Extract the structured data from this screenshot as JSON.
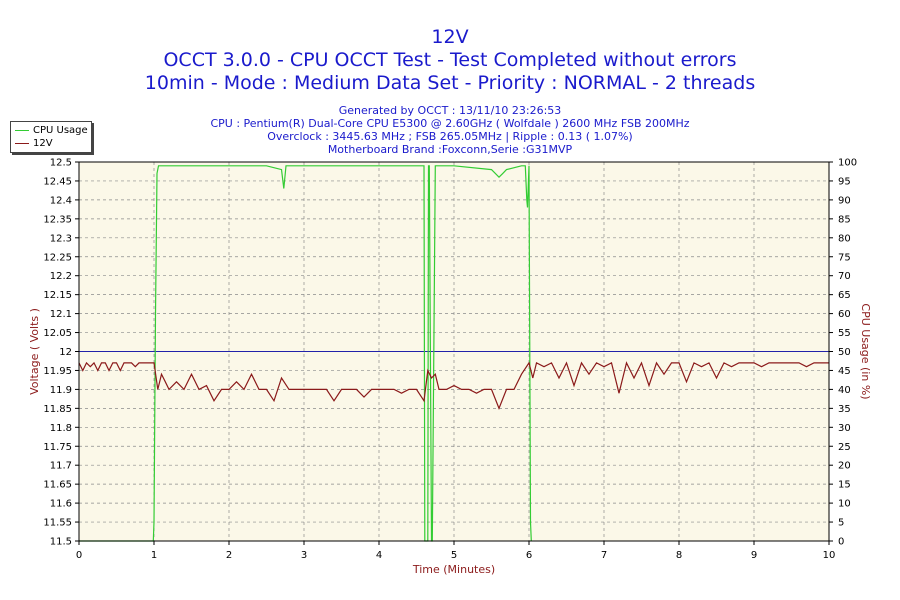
{
  "header": {
    "title": "12V",
    "subtitle": "OCCT 3.0.0 - CPU OCCT Test - Test Completed without errors",
    "subtitle2": "10min - Mode : Medium Data Set - Priority : NORMAL - 2 threads",
    "info": [
      "Generated by OCCT : 13/11/10 23:26:53",
      "CPU : Pentium(R) Dual-Core CPU E5300 @ 2.60GHz ( Wolfdale ) 2600 MHz FSB 200MHz",
      "Overclock : 3445.63 MHz ; FSB 265.05MHz | Ripple : 0.13 ( 1.07%)",
      "Motherboard Brand :Foxconn,Serie :G31MVP"
    ]
  },
  "legend": {
    "items": [
      {
        "label": "CPU Usage",
        "color": "#33cc33"
      },
      {
        "label": "12V",
        "color": "#8b1a1a"
      }
    ]
  },
  "colors": {
    "plot_bg": "#fbf8e8",
    "grid": "#8a8a8a",
    "axis_text": "#000000",
    "axis_label": "#8b1a1a",
    "cpu_line": "#33cc33",
    "voltage_line": "#8b1a1a",
    "reference_line": "#2222aa"
  },
  "chart_data": {
    "type": "line",
    "xlabel": "Time (Minutes)",
    "ylabel": "Voltage ( Volts )",
    "y2label": "CPU Usage (in %)",
    "xlim": [
      0,
      10
    ],
    "ylim": [
      11.5,
      12.5
    ],
    "y2lim": [
      0,
      100
    ],
    "xticks": [
      0,
      1,
      2,
      3,
      4,
      5,
      6,
      7,
      8,
      9,
      10
    ],
    "yticks": [
      11.5,
      11.55,
      11.6,
      11.65,
      11.7,
      11.75,
      11.8,
      11.85,
      11.9,
      11.95,
      12,
      12.05,
      12.1,
      12.15,
      12.2,
      12.25,
      12.3,
      12.35,
      12.4,
      12.45,
      12.5
    ],
    "ytick_labels": [
      "11.5",
      "11.55",
      "11.6",
      "11.65",
      "11.7",
      "11.75",
      "11.8",
      "11.85",
      "11.9",
      "11.95",
      "12",
      "12.05",
      "12.1",
      "12.15",
      "12.2",
      "12.25",
      "12.3",
      "12.35",
      "12.4",
      "12.45",
      "12.5"
    ],
    "y2ticks": [
      0,
      5,
      10,
      15,
      20,
      25,
      30,
      35,
      40,
      45,
      50,
      55,
      60,
      65,
      70,
      75,
      80,
      85,
      90,
      95,
      100
    ],
    "grid": true,
    "legend_position": "top-left",
    "reference_line": {
      "y": 12.0
    },
    "series": [
      {
        "name": "CPU Usage",
        "axis": "right",
        "x": [
          0,
          0.99,
          1.0,
          1.02,
          1.04,
          1.06,
          1.1,
          1.5,
          2.0,
          2.5,
          2.7,
          2.73,
          2.76,
          2.8,
          3.5,
          4.0,
          4.6,
          4.61,
          4.65,
          4.66,
          4.67,
          4.7,
          4.71,
          4.75,
          5.0,
          5.5,
          5.6,
          5.65,
          5.7,
          5.9,
          5.95,
          5.97,
          5.98,
          6.0,
          6.02,
          6.03
        ],
        "values": [
          0,
          0,
          5,
          60,
          97,
          99,
          99,
          99,
          99,
          99,
          98,
          93,
          99,
          99,
          99,
          99,
          99,
          0,
          0,
          99,
          99,
          0,
          0,
          99,
          99,
          98,
          96,
          97,
          98,
          99,
          99,
          90,
          88,
          99,
          5,
          0
        ]
      },
      {
        "name": "12V",
        "axis": "left",
        "x": [
          0,
          0.05,
          0.1,
          0.15,
          0.2,
          0.25,
          0.3,
          0.35,
          0.4,
          0.45,
          0.5,
          0.55,
          0.6,
          0.65,
          0.7,
          0.75,
          0.8,
          0.85,
          0.9,
          0.95,
          1.0,
          1.05,
          1.1,
          1.15,
          1.2,
          1.3,
          1.4,
          1.5,
          1.6,
          1.7,
          1.8,
          1.9,
          2.0,
          2.1,
          2.2,
          2.3,
          2.4,
          2.5,
          2.6,
          2.7,
          2.8,
          2.9,
          3.0,
          3.1,
          3.2,
          3.3,
          3.4,
          3.5,
          3.6,
          3.7,
          3.8,
          3.9,
          4.0,
          4.1,
          4.2,
          4.3,
          4.4,
          4.5,
          4.6,
          4.65,
          4.7,
          4.75,
          4.8,
          4.9,
          5.0,
          5.1,
          5.2,
          5.3,
          5.4,
          5.5,
          5.6,
          5.7,
          5.8,
          5.9,
          6.0,
          6.05,
          6.1,
          6.2,
          6.3,
          6.4,
          6.5,
          6.6,
          6.7,
          6.8,
          6.9,
          7.0,
          7.1,
          7.2,
          7.3,
          7.4,
          7.5,
          7.6,
          7.7,
          7.8,
          7.9,
          8.0,
          8.1,
          8.2,
          8.3,
          8.4,
          8.5,
          8.6,
          8.7,
          8.8,
          8.9,
          9.0,
          9.1,
          9.2,
          9.3,
          9.4,
          9.5,
          9.6,
          9.7,
          9.8,
          9.9,
          10.0
        ],
        "values": [
          11.97,
          11.95,
          11.97,
          11.96,
          11.97,
          11.95,
          11.97,
          11.97,
          11.95,
          11.97,
          11.97,
          11.95,
          11.97,
          11.97,
          11.97,
          11.96,
          11.97,
          11.97,
          11.97,
          11.97,
          11.97,
          11.9,
          11.94,
          11.92,
          11.9,
          11.92,
          11.9,
          11.94,
          11.9,
          11.91,
          11.87,
          11.9,
          11.9,
          11.92,
          11.9,
          11.94,
          11.9,
          11.9,
          11.87,
          11.93,
          11.9,
          11.9,
          11.9,
          11.9,
          11.9,
          11.9,
          11.87,
          11.9,
          11.9,
          11.9,
          11.88,
          11.9,
          11.9,
          11.9,
          11.9,
          11.89,
          11.9,
          11.9,
          11.87,
          11.95,
          11.93,
          11.94,
          11.9,
          11.9,
          11.91,
          11.9,
          11.9,
          11.89,
          11.9,
          11.9,
          11.85,
          11.9,
          11.9,
          11.94,
          11.97,
          11.93,
          11.97,
          11.96,
          11.97,
          11.93,
          11.97,
          11.91,
          11.97,
          11.94,
          11.97,
          11.96,
          11.97,
          11.89,
          11.97,
          11.93,
          11.97,
          11.91,
          11.97,
          11.94,
          11.97,
          11.97,
          11.92,
          11.97,
          11.96,
          11.97,
          11.93,
          11.97,
          11.96,
          11.97,
          11.97,
          11.97,
          11.96,
          11.97,
          11.97,
          11.97,
          11.97,
          11.97,
          11.96,
          11.97,
          11.97,
          11.97
        ]
      }
    ]
  }
}
